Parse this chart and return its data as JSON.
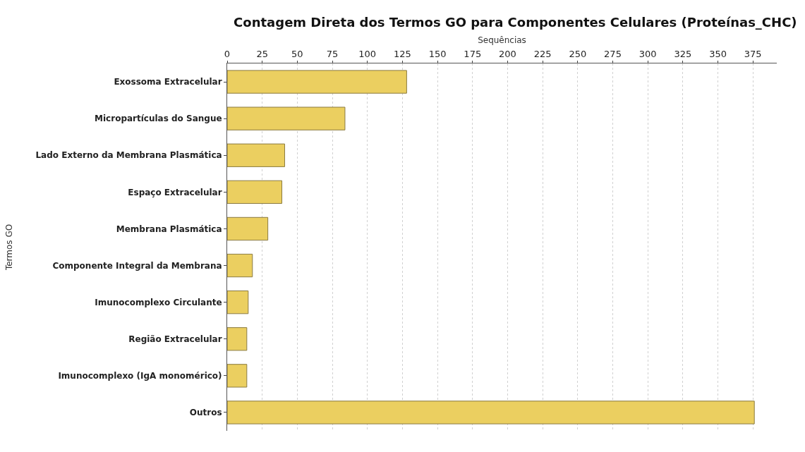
{
  "chart_data": {
    "type": "bar",
    "orientation": "horizontal",
    "title": "Contagem Direta dos Termos GO para Componentes Celulares (Proteínas_CHC)",
    "xlabel": "Sequências",
    "ylabel": "Termos GO",
    "categories": [
      "Exossoma Extracelular",
      "Micropartículas do Sangue",
      "Lado Externo da Membrana Plasmática",
      "Espaço Extracelular",
      "Membrana Plasmática",
      "Componente Integral da Membrana",
      "Imunocomplexo Circulante",
      "Região Extracelular",
      "Imunocomplexo (IgA monomérico)",
      "Outros"
    ],
    "values": [
      128,
      84,
      41,
      39,
      29,
      18,
      15,
      14,
      14,
      376
    ],
    "color": "#ebcf60",
    "xlim": [
      0,
      392
    ],
    "xticks": [
      0,
      25,
      50,
      75,
      100,
      125,
      150,
      175,
      200,
      225,
      250,
      275,
      300,
      325,
      350,
      375
    ],
    "grid": "x"
  }
}
